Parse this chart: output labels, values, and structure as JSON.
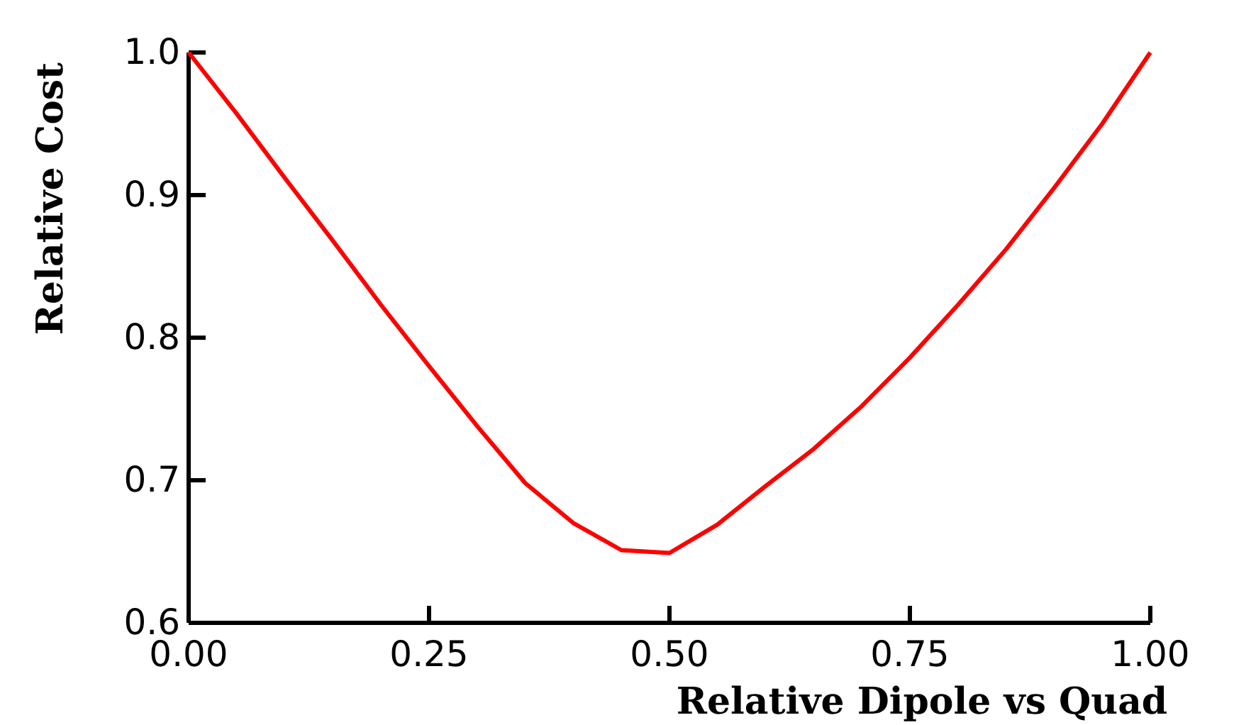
{
  "chart_data": {
    "type": "line",
    "xlabel": "Relative Dipole vs Quad",
    "ylabel": "Relative Cost",
    "x": [
      0,
      0.05,
      0.1,
      0.15,
      0.2,
      0.25,
      0.3,
      0.35,
      0.4,
      0.45,
      0.5,
      0.55,
      0.6,
      0.65,
      0.7,
      0.75,
      0.8,
      0.85,
      0.9,
      0.95,
      1.0
    ],
    "series": [
      {
        "color": "#ff0000",
        "values": [
          1.0,
          0.957,
          0.912,
          0.868,
          0.823,
          0.78,
          0.738,
          0.698,
          0.67,
          0.651,
          0.649,
          0.669,
          0.696,
          0.722,
          0.752,
          0.786,
          0.823,
          0.862,
          0.905,
          0.95,
          1.0
        ]
      }
    ],
    "xlim": [
      0,
      1
    ],
    "ylim": [
      0.6,
      1.0
    ],
    "xticks": [
      {
        "value": 0,
        "label": "0.00"
      },
      0.25,
      {
        "value": 0.5,
        "label": "0.50"
      },
      0.75,
      {
        "value": 1,
        "label": "1.00"
      }
    ],
    "yticks": [
      0.6,
      0.7,
      0.8,
      0.9,
      {
        "value": 1,
        "label": "1.0"
      }
    ],
    "grid": false,
    "marker": "none",
    "line_style": "solid"
  }
}
